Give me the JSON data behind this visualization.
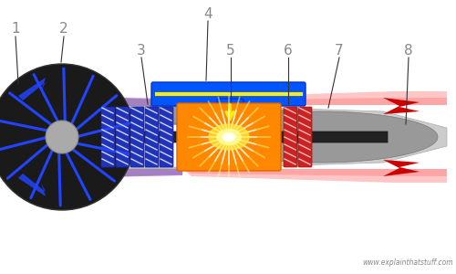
{
  "bg_color": "#ffffff",
  "engine_gray": "#cccccc",
  "engine_gray_dark": "#aaaaaa",
  "engine_gray_mid": "#b8b8b8",
  "shaft_color": "#222222",
  "fan_disk_color": "#1a1a1a",
  "fan_blade_color": "#2244ff",
  "fan_hub_color": "#cccccc",
  "blue_vane_color": "#2244ff",
  "bypass_purple": "#8833cc",
  "comp_blue": "#2233bb",
  "comp_stripe": "#ffffff",
  "comb_orange": "#ff8800",
  "comb_yellow": "#ffcc00",
  "turb_red": "#cc2222",
  "turb_stripe": "#ff9999",
  "exhaust_red": "#ff4444",
  "exhaust_arrow": "#cc0000",
  "nacelle_gray": "#888888",
  "duct_blue": "#0055ff",
  "duct_yellow": "#ffee00",
  "tail_dark": "#888888",
  "tail_light": "#bbbbbb",
  "label_color": "#888888",
  "label_fontsize": 11,
  "website": "www.explainthatstuff.com",
  "labels": [
    "1",
    "2",
    "3",
    "4",
    "5",
    "6",
    "7",
    "8"
  ]
}
